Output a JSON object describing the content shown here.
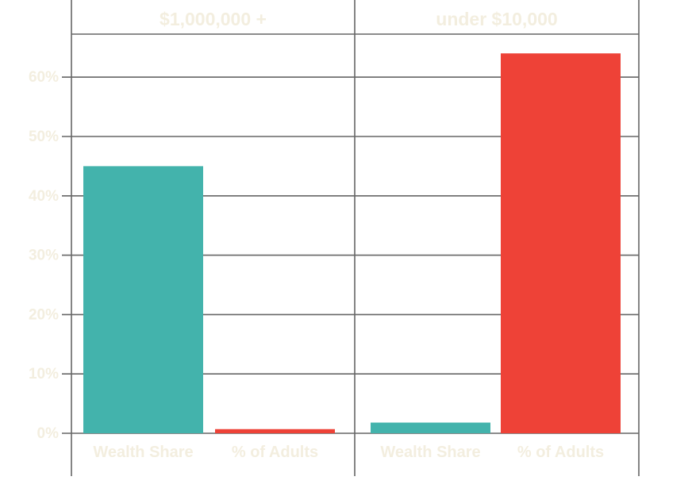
{
  "chart_data": {
    "type": "bar",
    "facets": [
      {
        "title": "$1,000,000 +",
        "categories": [
          "Wealth Share",
          "% of Adults"
        ],
        "values": [
          45,
          0.7
        ]
      },
      {
        "title": "under $10,000",
        "categories": [
          "Wealth Share",
          "% of Adults"
        ],
        "values": [
          1.8,
          64
        ]
      }
    ],
    "colors": {
      "Wealth Share": "#43b3ac",
      "% of Adults": "#ee4237"
    },
    "yticks": [
      "0%",
      "10%",
      "20%",
      "30%",
      "40%",
      "50%",
      "60%"
    ],
    "ylim": [
      0,
      65
    ],
    "grid": true,
    "text_color": "#f3eedf",
    "grid_color": "#666666"
  }
}
